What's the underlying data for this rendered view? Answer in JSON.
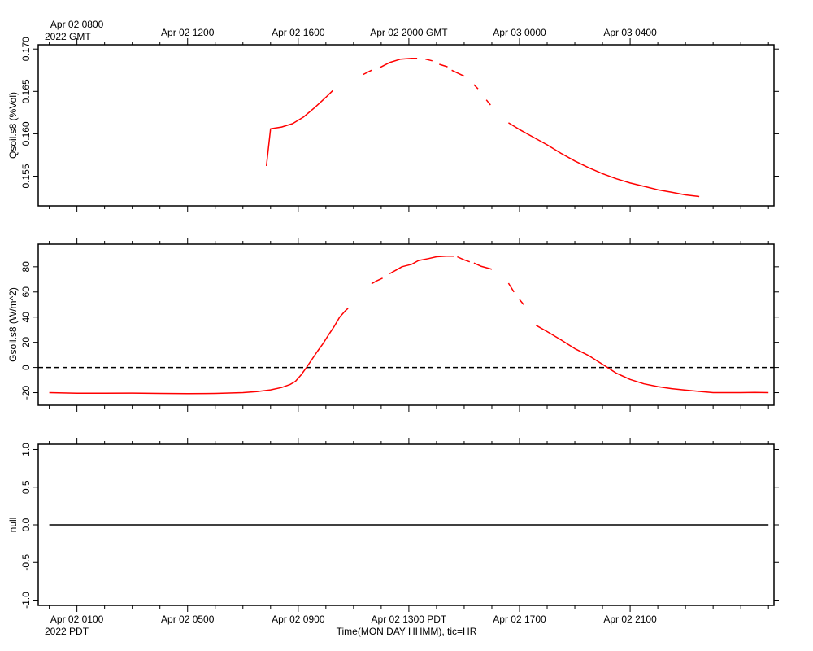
{
  "chart_data": [
    {
      "type": "line",
      "ylabel": "Qsoil.s8 (%Vol)",
      "ylim": [
        0.1515,
        0.1705
      ],
      "yticks": [
        "0.155",
        "0.160",
        "0.165",
        "0.170"
      ],
      "series": [
        {
          "color": "#ff0000",
          "segments": [
            [
              [
                15.85,
                0.1562
              ],
              [
                16.0,
                0.1606
              ],
              [
                16.4,
                0.1608
              ],
              [
                16.8,
                0.1612
              ],
              [
                17.2,
                0.162
              ],
              [
                17.6,
                0.1631
              ],
              [
                18.0,
                0.1643
              ],
              [
                18.25,
                0.1651
              ]
            ],
            [
              [
                19.35,
                0.167
              ],
              [
                19.65,
                0.1675
              ]
            ],
            [
              [
                19.95,
                0.1678
              ],
              [
                20.3,
                0.1684
              ],
              [
                20.7,
                0.1688
              ],
              [
                21.1,
                0.1689
              ],
              [
                21.3,
                0.1689
              ]
            ],
            [
              [
                21.6,
                0.1688
              ],
              [
                21.85,
                0.1686
              ]
            ],
            [
              [
                22.1,
                0.1682
              ],
              [
                22.4,
                0.1679
              ]
            ],
            [
              [
                22.55,
                0.1675
              ],
              [
                23.0,
                0.1668
              ]
            ],
            [
              [
                23.35,
                0.1658
              ],
              [
                23.5,
                0.1653
              ]
            ],
            [
              [
                23.8,
                0.164
              ],
              [
                23.95,
                0.1634
              ]
            ],
            [
              [
                24.6,
                0.1613
              ],
              [
                25.0,
                0.1605
              ],
              [
                25.5,
                0.1596
              ],
              [
                26.0,
                0.1587
              ],
              [
                26.5,
                0.1577
              ],
              [
                27.0,
                0.1568
              ],
              [
                27.5,
                0.156
              ],
              [
                28.0,
                0.1553
              ],
              [
                28.5,
                0.1547
              ],
              [
                29.0,
                0.1542
              ],
              [
                29.5,
                0.1538
              ],
              [
                30.0,
                0.1534
              ],
              [
                30.5,
                0.1531
              ],
              [
                31.0,
                0.1528
              ],
              [
                31.5,
                0.1526
              ]
            ]
          ]
        }
      ]
    },
    {
      "type": "line",
      "ylabel": "Gsoil.s8 (W/m^2)",
      "ylim": [
        -30,
        98
      ],
      "yticks": [
        "-20",
        "0",
        "20",
        "40",
        "60",
        "80"
      ],
      "zero_line": true,
      "series": [
        {
          "color": "#ff0000",
          "segments": [
            [
              [
                8.0,
                -20.0
              ],
              [
                9.0,
                -20.5
              ],
              [
                10.0,
                -20.5
              ],
              [
                11.0,
                -20.4
              ],
              [
                12.0,
                -20.6
              ],
              [
                13.0,
                -20.8
              ],
              [
                14.0,
                -20.6
              ],
              [
                14.5,
                -20.3
              ],
              [
                15.0,
                -20.0
              ],
              [
                15.5,
                -19.2
              ],
              [
                16.0,
                -17.8
              ],
              [
                16.4,
                -15.9
              ],
              [
                16.7,
                -13.6
              ],
              [
                16.9,
                -11.0
              ],
              [
                17.1,
                -6.0
              ],
              [
                17.3,
                0.0
              ],
              [
                17.5,
                6.5
              ],
              [
                17.7,
                13.0
              ],
              [
                17.9,
                19.0
              ],
              [
                18.1,
                26.0
              ],
              [
                18.3,
                32.5
              ],
              [
                18.5,
                40.0
              ],
              [
                18.7,
                45.0
              ],
              [
                18.8,
                47.0
              ]
            ],
            [
              [
                19.65,
                66.5
              ],
              [
                19.85,
                69.0
              ],
              [
                20.05,
                71.0
              ]
            ],
            [
              [
                20.3,
                74.5
              ],
              [
                20.55,
                77.5
              ],
              [
                20.75,
                80.0
              ],
              [
                21.1,
                82.0
              ],
              [
                21.35,
                85.0
              ],
              [
                21.7,
                86.5
              ],
              [
                22.0,
                88.0
              ],
              [
                22.35,
                88.5
              ],
              [
                22.65,
                88.5
              ]
            ],
            [
              [
                22.75,
                88.0
              ],
              [
                23.0,
                85.5
              ],
              [
                23.2,
                84.0
              ]
            ],
            [
              [
                23.35,
                83.0
              ],
              [
                23.6,
                80.5
              ],
              [
                24.0,
                78.0
              ]
            ],
            [
              [
                24.6,
                67.0
              ],
              [
                24.8,
                60.0
              ]
            ],
            [
              [
                25.0,
                54.0
              ],
              [
                25.15,
                50.0
              ]
            ],
            [
              [
                25.6,
                33.5
              ],
              [
                26.0,
                28.5
              ],
              [
                26.5,
                22.0
              ],
              [
                27.0,
                15.0
              ],
              [
                27.5,
                9.5
              ],
              [
                28.0,
                2.5
              ],
              [
                28.5,
                -4.5
              ],
              [
                29.0,
                -9.5
              ],
              [
                29.5,
                -13.0
              ],
              [
                30.0,
                -15.2
              ],
              [
                30.5,
                -16.8
              ],
              [
                31.0,
                -18.0
              ],
              [
                31.5,
                -19.0
              ],
              [
                32.0,
                -20.0
              ],
              [
                32.5,
                -20.0
              ],
              [
                33.0,
                -20.0
              ]
            ],
            [
              [
                33.0,
                -20.0
              ],
              [
                33.5,
                -19.8
              ],
              [
                34.0,
                -20.0
              ]
            ]
          ]
        }
      ]
    },
    {
      "type": "line",
      "ylabel": "null",
      "ylim": [
        -1.07,
        1.07
      ],
      "yticks": [
        "-1.0",
        "-0.5",
        "0.0",
        "0.5",
        "1.0"
      ],
      "series": [
        {
          "color": "#000000",
          "segments": [
            [
              [
                8.0,
                0.0
              ],
              [
                34.0,
                0.0
              ]
            ]
          ]
        }
      ]
    }
  ],
  "x_axis": {
    "unit": "hours (PDT) from 2022-04-02 00:00",
    "xlim": [
      7.6,
      34.2
    ],
    "top_ticks": [
      "Apr 02 0800",
      "Apr 02 1200",
      "Apr 02 1600",
      "Apr 02 2000 GMT",
      "Apr 03 0000",
      "Apr 03 0400"
    ],
    "top_year": "2022 GMT",
    "bottom_ticks": [
      "Apr 02 0100",
      "Apr 02 0500",
      "Apr 02 0900",
      "Apr 02 1300 PDT",
      "Apr 02 1700",
      "Apr 02 2100"
    ],
    "bottom_year": "2022 PDT",
    "xlabel": "Time(MON DAY HHMM), tic=HR"
  }
}
